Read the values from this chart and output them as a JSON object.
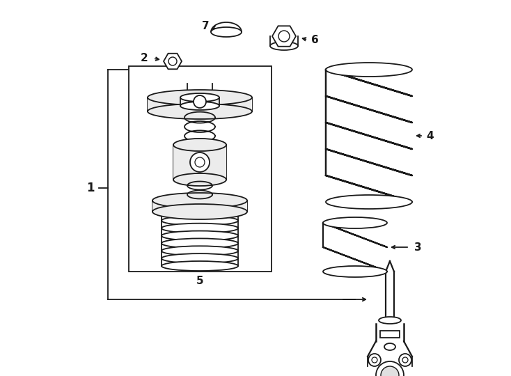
{
  "bg_color": "#ffffff",
  "line_color": "#1a1a1a",
  "fig_width": 7.34,
  "fig_height": 5.4,
  "dpi": 100,
  "lw": 1.3
}
